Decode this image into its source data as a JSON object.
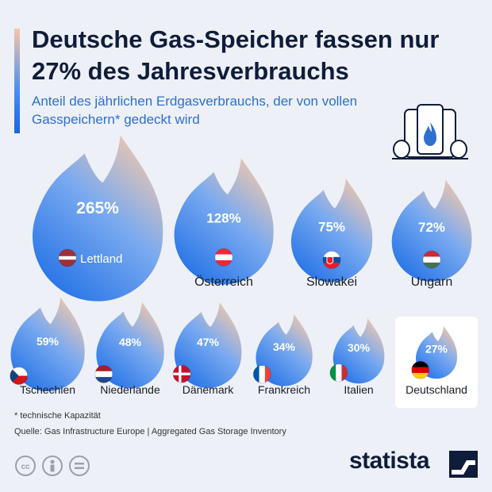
{
  "header": {
    "title": "Deutsche Gas-Speicher fassen nur 27% des Jahresverbrauchs",
    "subtitle": "Anteil des jährlichen Erdgasverbrauchs, der von vollen Gasspeichern* gedeckt wird"
  },
  "chart_data": {
    "type": "bubble",
    "unit": "%",
    "items": [
      {
        "country": "Lettland",
        "value": 265,
        "label": "265%"
      },
      {
        "country": "Österreich",
        "value": 128,
        "label": "128%"
      },
      {
        "country": "Slowakei",
        "value": 75,
        "label": "75%"
      },
      {
        "country": "Ungarn",
        "value": 72,
        "label": "72%"
      },
      {
        "country": "Tschechien",
        "value": 59,
        "label": "59%"
      },
      {
        "country": "Niederlande",
        "value": 48,
        "label": "48%"
      },
      {
        "country": "Dänemark",
        "value": 47,
        "label": "47%"
      },
      {
        "country": "Frankreich",
        "value": 34,
        "label": "34%"
      },
      {
        "country": "Italien",
        "value": 30,
        "label": "30%"
      },
      {
        "country": "Deutschland",
        "value": 27,
        "label": "27%",
        "highlighted": true
      }
    ]
  },
  "footer": {
    "footnote": "* technische Kapazität",
    "source": "Quelle: Gas Infrastructure Europe | Aggregated Gas Storage Inventory",
    "brand": "statista"
  },
  "colors": {
    "flame_top": "#f8c9a8",
    "flame_bottom": "#1f6fe6",
    "title": "#0f1c3a",
    "subtitle": "#2e6fd0",
    "background": "#edf0f6"
  },
  "icons": [
    "gas-storage-icon",
    "flag-icon",
    "cc-icon",
    "person-icon",
    "equal-icon",
    "statista-logo-icon"
  ]
}
